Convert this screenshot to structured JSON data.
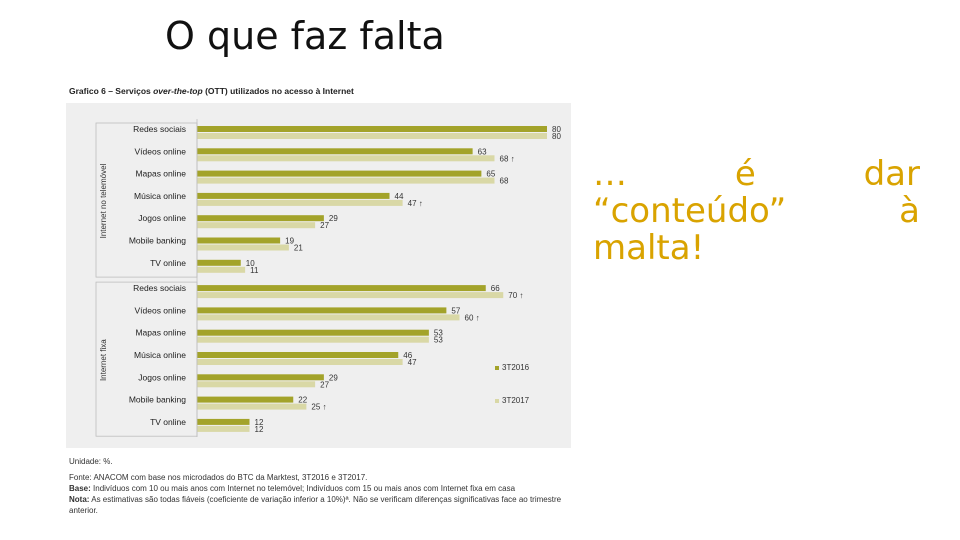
{
  "slide": {
    "title": "O que faz falta",
    "side_text": "… é dar “conteúdo” à malta!"
  },
  "chart_header": {
    "prefix": "Grafico 6 – Serviços ",
    "italic": "over-the-top",
    "suffix": " (OTT) utilizados no acesso à Internet"
  },
  "notes": {
    "unidade": "Unidade: %.",
    "fonte": "Fonte: ANACOM com base nos microdados do BTC da Marktest, 3T2016 e 3T2017.",
    "base_label": "Base:",
    "base_text": " Indivíduos com 10 ou mais anos com Internet no telemóvel; Indivíduos com 15 ou mais anos com Internet fixa em casa",
    "nota_label": "Nota:",
    "nota_text": " As estimativas são todas fiáveis (coeficiente de variação inferior a 10%)ª. Não se verificam diferenças significativas face ao trimestre anterior."
  },
  "colors": {
    "series_2016": "#a3a32a",
    "series_2017": "#d9d8a6",
    "panel_bg": "#efefef",
    "accent_text": "#d9a300"
  },
  "chart_data": {
    "type": "bar",
    "orientation": "horizontal",
    "xlim": [
      0,
      80
    ],
    "legend_position": "right",
    "series_names": [
      "3T2016",
      "3T2017"
    ],
    "groups": [
      {
        "label": "Internet no telemóvel",
        "categories": [
          "Redes sociais",
          "Vídeos online",
          "Mapas online",
          "Música online",
          "Jogos online",
          "Mobile banking",
          "TV online"
        ],
        "series": [
          {
            "name": "3T2016",
            "values": [
              80,
              63,
              65,
              44,
              29,
              19,
              10
            ]
          },
          {
            "name": "3T2017",
            "values": [
              80,
              68,
              68,
              47,
              27,
              21,
              11
            ]
          }
        ],
        "arrows_2017": [
          false,
          true,
          false,
          true,
          false,
          false,
          false
        ]
      },
      {
        "label": "Internet fixa",
        "categories": [
          "Redes sociais",
          "Vídeos online",
          "Mapas online",
          "Música online",
          "Jogos online",
          "Mobile banking",
          "TV online"
        ],
        "series": [
          {
            "name": "3T2016",
            "values": [
              66,
              57,
              53,
              46,
              29,
              22,
              12
            ]
          },
          {
            "name": "3T2017",
            "values": [
              70,
              60,
              53,
              47,
              27,
              25,
              12
            ]
          }
        ],
        "arrows_2017": [
          true,
          true,
          false,
          false,
          false,
          true,
          false
        ]
      }
    ]
  }
}
